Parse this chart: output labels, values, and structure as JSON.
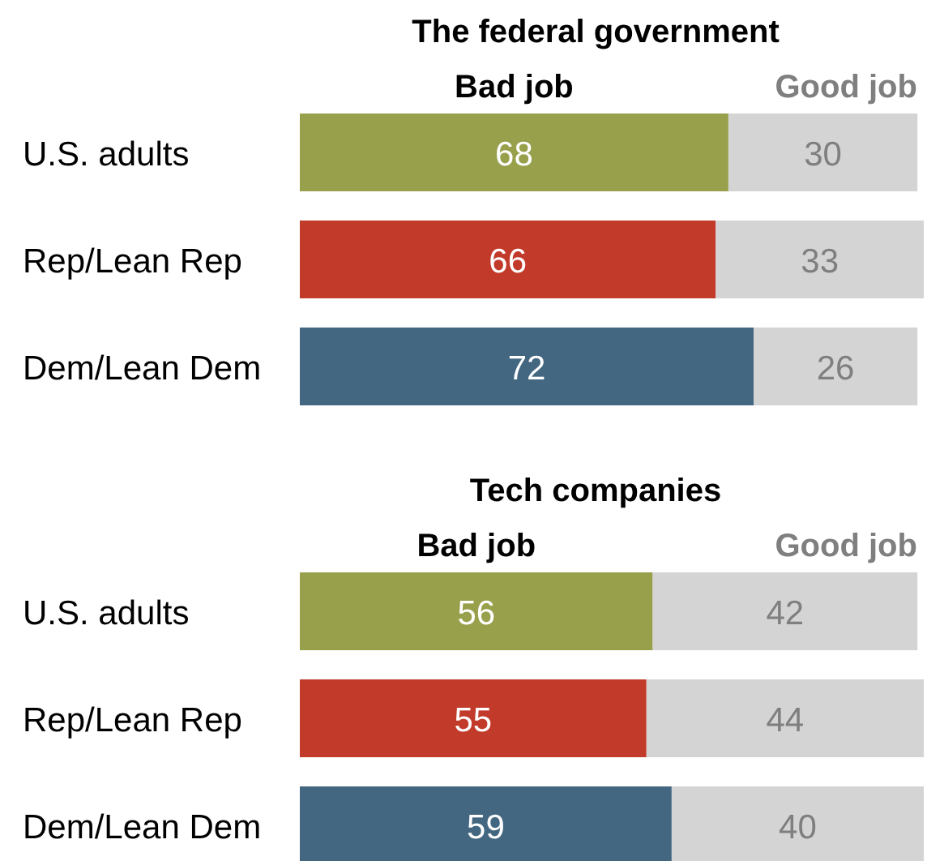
{
  "chart_data": [
    {
      "type": "bar",
      "orientation": "horizontal",
      "stacked": true,
      "title": "The federal government",
      "categories": [
        "U.S. adults",
        "Rep/Lean Rep",
        "Dem/Lean Dem"
      ],
      "legend": "top",
      "data_labels": true,
      "tick_labels": "y",
      "series": [
        {
          "name": "Bad job",
          "colors": [
            "#98a04c",
            "#c23b2a",
            "#436781"
          ],
          "values": [
            68,
            66,
            72
          ]
        },
        {
          "name": "Good job",
          "color": "#d4d4d5",
          "values": [
            30,
            33,
            26
          ]
        }
      ]
    },
    {
      "type": "bar",
      "orientation": "horizontal",
      "stacked": true,
      "title": "Tech companies",
      "categories": [
        "U.S. adults",
        "Rep/Lean Rep",
        "Dem/Lean Dem"
      ],
      "legend": "top",
      "data_labels": true,
      "tick_labels": "y",
      "series": [
        {
          "name": "Bad job",
          "colors": [
            "#98a04c",
            "#c23b2a",
            "#436781"
          ],
          "values": [
            56,
            55,
            59
          ]
        },
        {
          "name": "Good job",
          "color": "#d4d4d5",
          "values": [
            42,
            44,
            40
          ]
        }
      ]
    }
  ]
}
